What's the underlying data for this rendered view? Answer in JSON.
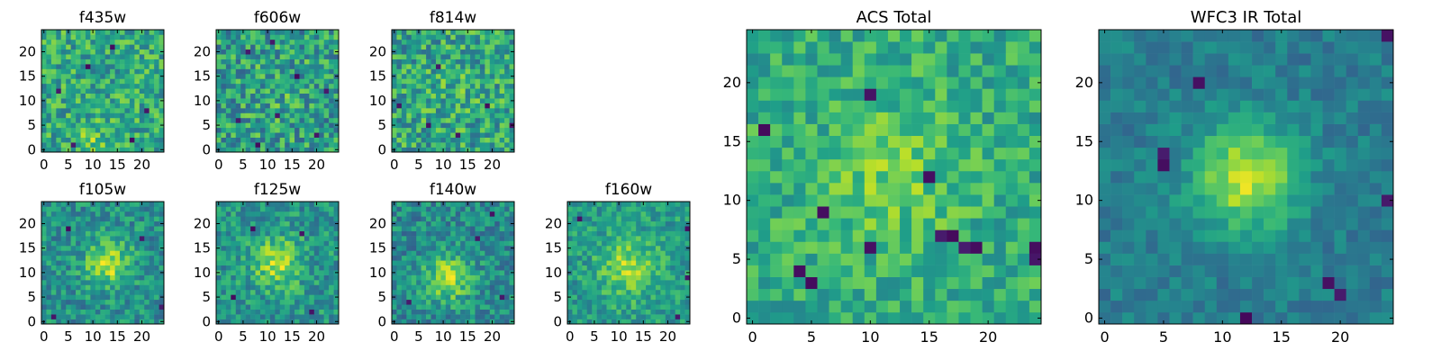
{
  "figure": {
    "colormap": "viridis",
    "colormap_stops": [
      "#440154",
      "#482878",
      "#3e4989",
      "#31688e",
      "#26828e",
      "#1f9e89",
      "#35b779",
      "#6ece58",
      "#b5de2b",
      "#fde725"
    ]
  },
  "chart_data": [
    {
      "type": "heatmap",
      "title": "f435w",
      "grid_size": 25,
      "xlim": [
        0,
        24
      ],
      "ylim": [
        0,
        24
      ],
      "xticks": [
        "0",
        "5",
        "10",
        "15",
        "20"
      ],
      "yticks": [
        "0",
        "5",
        "10",
        "15",
        "20"
      ],
      "value_range": [
        0,
        1
      ],
      "grid": false,
      "peak": [
        10,
        1
      ],
      "peak_sigma": 3,
      "peak_amp": 0.15,
      "base": 0.6,
      "noise": 0.22,
      "seed": 11,
      "minima": [
        [
          6,
          1
        ],
        [
          18,
          2
        ],
        [
          21,
          8
        ],
        [
          3,
          12
        ],
        [
          14,
          21
        ],
        [
          9,
          17
        ]
      ]
    },
    {
      "type": "heatmap",
      "title": "f606w",
      "grid_size": 25,
      "xlim": [
        0,
        24
      ],
      "ylim": [
        0,
        24
      ],
      "xticks": [
        "0",
        "5",
        "10",
        "15",
        "20"
      ],
      "yticks": [
        "0",
        "5",
        "10",
        "15",
        "20"
      ],
      "value_range": [
        0,
        1
      ],
      "grid": false,
      "peak": [
        12,
        12
      ],
      "peak_sigma": 5,
      "peak_amp": 0.05,
      "base": 0.55,
      "noise": 0.25,
      "seed": 23,
      "minima": [
        [
          8,
          1
        ],
        [
          4,
          6
        ],
        [
          12,
          7
        ],
        [
          20,
          3
        ],
        [
          16,
          15
        ],
        [
          22,
          12
        ],
        [
          6,
          20
        ],
        [
          11,
          22
        ]
      ]
    },
    {
      "type": "heatmap",
      "title": "f814w",
      "grid_size": 25,
      "xlim": [
        0,
        24
      ],
      "ylim": [
        0,
        24
      ],
      "xticks": [
        "0",
        "5",
        "10",
        "15",
        "20"
      ],
      "yticks": [
        "0",
        "5",
        "10",
        "15",
        "20"
      ],
      "value_range": [
        0,
        1
      ],
      "grid": false,
      "peak": [
        12,
        12
      ],
      "peak_sigma": 5,
      "peak_amp": 0.05,
      "base": 0.58,
      "noise": 0.24,
      "seed": 37,
      "minima": [
        [
          1,
          9
        ],
        [
          7,
          5
        ],
        [
          13,
          3
        ],
        [
          19,
          9
        ],
        [
          24,
          5
        ],
        [
          9,
          17
        ]
      ]
    },
    {
      "type": "heatmap",
      "title": "f105w",
      "grid_size": 25,
      "xlim": [
        0,
        24
      ],
      "ylim": [
        0,
        24
      ],
      "xticks": [
        "0",
        "5",
        "10",
        "15",
        "20"
      ],
      "yticks": [
        "0",
        "5",
        "10",
        "15",
        "20"
      ],
      "value_range": [
        0,
        1
      ],
      "grid": false,
      "peak": [
        13,
        12
      ],
      "peak_sigma": 3.2,
      "peak_amp": 0.4,
      "base": 0.5,
      "noise": 0.18,
      "seed": 41,
      "minima": [
        [
          2,
          1
        ],
        [
          24,
          3
        ],
        [
          5,
          19
        ],
        [
          20,
          17
        ]
      ]
    },
    {
      "type": "heatmap",
      "title": "f125w",
      "grid_size": 25,
      "xlim": [
        0,
        24
      ],
      "ylim": [
        0,
        24
      ],
      "xticks": [
        "0",
        "5",
        "10",
        "15",
        "20"
      ],
      "yticks": [
        "0",
        "5",
        "10",
        "15",
        "20"
      ],
      "value_range": [
        0,
        1
      ],
      "grid": false,
      "peak": [
        12,
        12
      ],
      "peak_sigma": 3.5,
      "peak_amp": 0.35,
      "base": 0.52,
      "noise": 0.18,
      "seed": 53,
      "minima": [
        [
          7,
          19
        ],
        [
          17,
          18
        ],
        [
          3,
          5
        ],
        [
          19,
          2
        ]
      ]
    },
    {
      "type": "heatmap",
      "title": "f140w",
      "grid_size": 25,
      "xlim": [
        0,
        24
      ],
      "ylim": [
        0,
        24
      ],
      "xticks": [
        "0",
        "5",
        "10",
        "15",
        "20"
      ],
      "yticks": [
        "0",
        "5",
        "10",
        "15",
        "20"
      ],
      "value_range": [
        0,
        1
      ],
      "grid": false,
      "peak": [
        11,
        9
      ],
      "peak_sigma": 3.3,
      "peak_amp": 0.4,
      "base": 0.48,
      "noise": 0.18,
      "seed": 67,
      "minima": [
        [
          20,
          22
        ],
        [
          17,
          17
        ],
        [
          3,
          4
        ],
        [
          22,
          5
        ]
      ]
    },
    {
      "type": "heatmap",
      "title": "f160w",
      "grid_size": 25,
      "xlim": [
        0,
        24
      ],
      "ylim": [
        0,
        24
      ],
      "xticks": [
        "0",
        "5",
        "10",
        "15",
        "20"
      ],
      "yticks": [
        "0",
        "5",
        "10",
        "15",
        "20"
      ],
      "value_range": [
        0,
        1
      ],
      "grid": false,
      "peak": [
        12,
        11
      ],
      "peak_sigma": 4,
      "peak_amp": 0.3,
      "base": 0.55,
      "noise": 0.16,
      "seed": 79,
      "minima": [
        [
          22,
          1
        ],
        [
          24,
          9
        ],
        [
          24,
          19
        ],
        [
          2,
          21
        ]
      ]
    },
    {
      "type": "heatmap",
      "title": "ACS Total",
      "grid_size": 25,
      "xlim": [
        0,
        24
      ],
      "ylim": [
        0,
        24
      ],
      "xticks": [
        "0",
        "5",
        "10",
        "15",
        "20"
      ],
      "yticks": [
        "0",
        "5",
        "10",
        "15",
        "20"
      ],
      "value_range": [
        0,
        1
      ],
      "grid": false,
      "peak": [
        12,
        12
      ],
      "peak_sigma": 4,
      "peak_amp": 0.15,
      "base": 0.62,
      "noise": 0.16,
      "seed": 97,
      "minima": [
        [
          1,
          16
        ],
        [
          6,
          9
        ],
        [
          10,
          19
        ],
        [
          5,
          3
        ],
        [
          4,
          4
        ],
        [
          10,
          6
        ],
        [
          16,
          7
        ],
        [
          17,
          7
        ],
        [
          18,
          6
        ],
        [
          19,
          6
        ],
        [
          24,
          5
        ],
        [
          24,
          6
        ],
        [
          15,
          12
        ]
      ]
    },
    {
      "type": "heatmap",
      "title": "WFC3 IR Total",
      "grid_size": 25,
      "xlim": [
        0,
        24
      ],
      "ylim": [
        0,
        24
      ],
      "xticks": [
        "0",
        "5",
        "10",
        "15",
        "20"
      ],
      "yticks": [
        "0",
        "5",
        "10",
        "15",
        "20"
      ],
      "value_range": [
        0,
        1
      ],
      "grid": false,
      "peak": [
        12,
        12
      ],
      "peak_sigma": 3.2,
      "peak_amp": 0.5,
      "base": 0.42,
      "noise": 0.1,
      "seed": 101,
      "minima": [
        [
          8,
          20
        ],
        [
          5,
          13
        ],
        [
          5,
          14
        ],
        [
          24,
          10
        ],
        [
          19,
          3
        ],
        [
          20,
          2
        ],
        [
          12,
          0
        ],
        [
          24,
          24
        ]
      ]
    }
  ]
}
